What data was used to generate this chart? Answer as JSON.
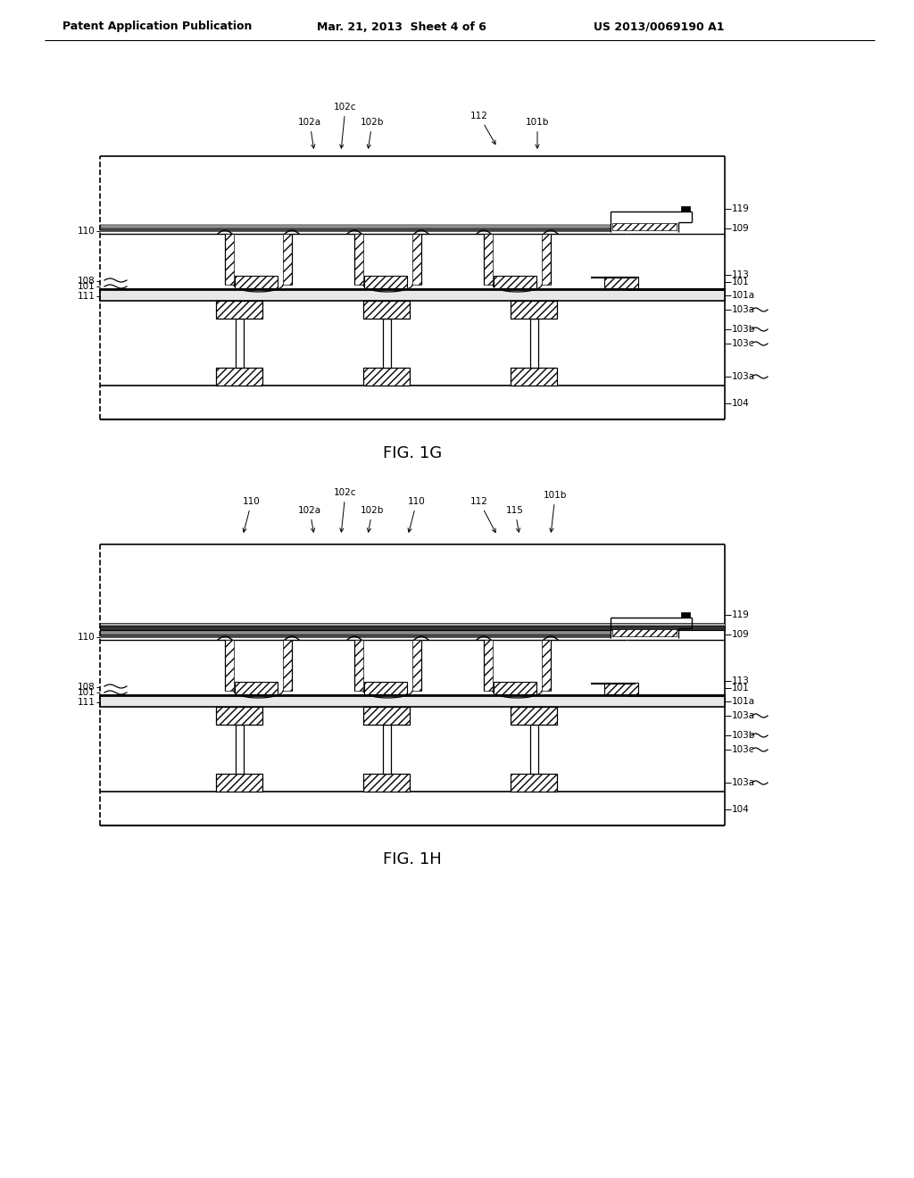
{
  "bg_color": "#ffffff",
  "header_left": "Patent Application Publication",
  "header_mid": "Mar. 21, 2013  Sheet 4 of 6",
  "header_right": "US 2013/0069190 A1",
  "fig1g_caption": "FIG. 1G",
  "fig1h_caption": "FIG. 1H",
  "lfs": 7.5,
  "caption_fs": 13
}
